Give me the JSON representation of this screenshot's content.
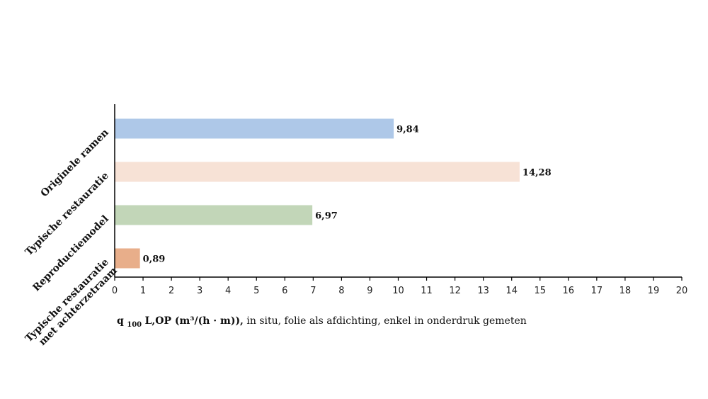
{
  "chart_data": {
    "type": "bar",
    "orientation": "horizontal",
    "categories": [
      [
        "Originele ramen"
      ],
      [
        "Typische restauratie"
      ],
      [
        "Reproductiemodel"
      ],
      [
        "Typische restauratie",
        "met achterzetraam"
      ]
    ],
    "values": [
      9.84,
      14.28,
      6.97,
      0.89
    ],
    "data_labels": [
      "9,84",
      "14,28",
      "6,97",
      "0,89"
    ],
    "colors": [
      "#aec8e8",
      "#f7e2d6",
      "#c2d6b8",
      "#e8ae8a"
    ],
    "xlim": [
      0,
      20
    ],
    "xticks": [
      0,
      1,
      2,
      3,
      4,
      5,
      6,
      7,
      8,
      9,
      10,
      11,
      12,
      13,
      14,
      15,
      16,
      17,
      18,
      19,
      20
    ],
    "xlabel": {
      "q": "q",
      "sub": "100",
      "main": "L,OP (m³/(h · m)),",
      "rest": " in situ, folie als afdichting, enkel in onderdruk gemeten"
    },
    "grid": false,
    "legend": "none"
  }
}
